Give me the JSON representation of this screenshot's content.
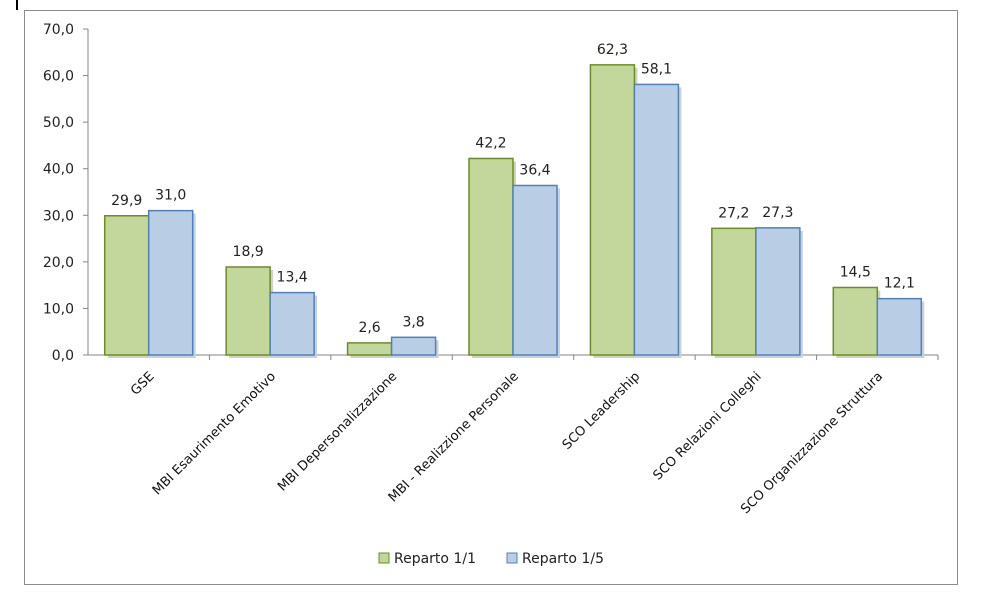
{
  "chart_data": {
    "type": "bar",
    "categories": [
      "GSE",
      "MBI Esaurimento Emotivo",
      "MBI Depersonalizzazione",
      "MBI - Realizzione Personale",
      "SCO Leadership",
      "SCO Relazioni Colleghi",
      "SCO Organizzazione Struttura"
    ],
    "series": [
      {
        "name": "Reparto 1/1",
        "values": [
          29.9,
          18.9,
          2.6,
          42.2,
          62.3,
          27.2,
          14.5
        ],
        "labels": [
          "29,9",
          "18,9",
          "2,6",
          "42,2",
          "62,3",
          "27,2",
          "14,5"
        ],
        "color": "#c3d69b",
        "stroke": "#6b8e23"
      },
      {
        "name": "Reparto 1/5",
        "values": [
          31.0,
          13.4,
          3.8,
          36.4,
          58.1,
          27.3,
          12.1
        ],
        "labels": [
          "31,0",
          "13,4",
          "3,8",
          "36,4",
          "58,1",
          "27,3",
          "12,1"
        ],
        "color": "#b9cde5",
        "stroke": "#4f81bd"
      }
    ],
    "yticks": [
      "0,0",
      "10,0",
      "20,0",
      "30,0",
      "40,0",
      "50,0",
      "60,0",
      "70,0"
    ],
    "ylim": [
      0,
      70
    ],
    "title": "",
    "xlabel": "",
    "ylabel": "",
    "legend": "bottom",
    "grid": false
  }
}
